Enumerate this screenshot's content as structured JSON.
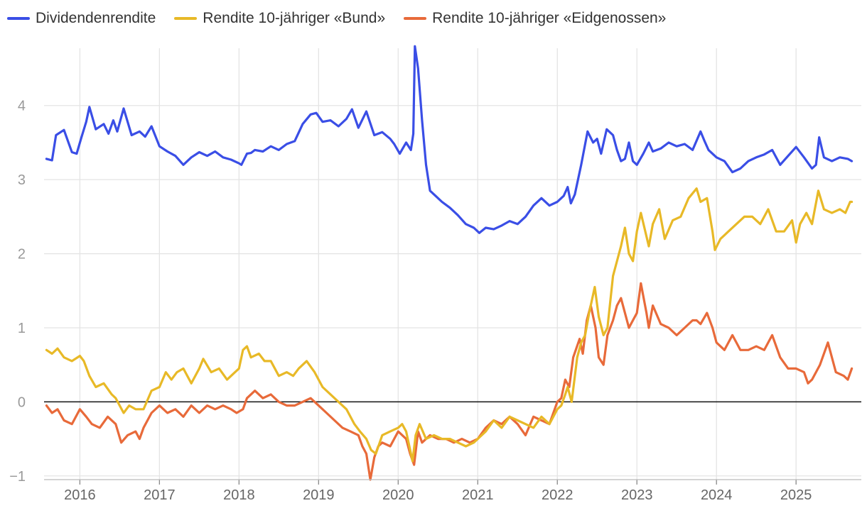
{
  "chart_data": {
    "type": "line",
    "title": "",
    "xlabel": "",
    "ylabel": "",
    "xlim": [
      2015.55,
      2025.82
    ],
    "ylim": [
      -1.05,
      4.85
    ],
    "x_ticks": [
      2016,
      2017,
      2018,
      2019,
      2020,
      2021,
      2022,
      2023,
      2024,
      2025
    ],
    "x_tick_labels": [
      "2016",
      "2017",
      "2018",
      "2019",
      "2020",
      "2021",
      "2022",
      "2023",
      "2024",
      "2025"
    ],
    "y_ticks": [
      -1,
      0,
      1,
      2,
      3,
      4
    ],
    "y_tick_labels": [
      "−1",
      "0",
      "1",
      "2",
      "3",
      "4"
    ],
    "zero_line": true,
    "grid": true,
    "legend_position": "top-left",
    "series": [
      {
        "name": "Dividendenrendite",
        "color": "#3a4ee6",
        "x": [
          2015.58,
          2015.65,
          2015.7,
          2015.8,
          2015.9,
          2015.96,
          2016.02,
          2016.08,
          2016.12,
          2016.2,
          2016.3,
          2016.36,
          2016.42,
          2016.47,
          2016.55,
          2016.65,
          2016.75,
          2016.82,
          2016.9,
          2017.0,
          2017.1,
          2017.2,
          2017.3,
          2017.4,
          2017.5,
          2017.6,
          2017.7,
          2017.8,
          2017.9,
          2018.0,
          2018.03,
          2018.1,
          2018.15,
          2018.2,
          2018.3,
          2018.4,
          2018.5,
          2018.6,
          2018.7,
          2018.8,
          2018.9,
          2018.97,
          2019.05,
          2019.15,
          2019.25,
          2019.35,
          2019.42,
          2019.5,
          2019.6,
          2019.7,
          2019.8,
          2019.9,
          2019.95,
          2020.02,
          2020.1,
          2020.16,
          2020.19,
          2020.21,
          2020.25,
          2020.3,
          2020.35,
          2020.4,
          2020.47,
          2020.55,
          2020.65,
          2020.75,
          2020.85,
          2020.95,
          2021.02,
          2021.1,
          2021.2,
          2021.3,
          2021.4,
          2021.5,
          2021.6,
          2021.7,
          2021.8,
          2021.9,
          2022.0,
          2022.08,
          2022.13,
          2022.17,
          2022.22,
          2022.3,
          2022.38,
          2022.45,
          2022.5,
          2022.55,
          2022.62,
          2022.7,
          2022.75,
          2022.8,
          2022.85,
          2022.9,
          2022.95,
          2023.0,
          2023.08,
          2023.15,
          2023.2,
          2023.3,
          2023.4,
          2023.5,
          2023.6,
          2023.7,
          2023.8,
          2023.85,
          2023.9,
          2024.0,
          2024.1,
          2024.2,
          2024.3,
          2024.4,
          2024.5,
          2024.6,
          2024.7,
          2024.8,
          2024.9,
          2025.0,
          2025.1,
          2025.2,
          2025.25,
          2025.29,
          2025.35,
          2025.45,
          2025.55,
          2025.65,
          2025.7
        ],
        "values": [
          3.28,
          3.26,
          3.6,
          3.67,
          3.37,
          3.35,
          3.57,
          3.78,
          3.98,
          3.68,
          3.75,
          3.62,
          3.8,
          3.65,
          3.96,
          3.6,
          3.65,
          3.58,
          3.72,
          3.45,
          3.38,
          3.32,
          3.2,
          3.3,
          3.37,
          3.32,
          3.38,
          3.3,
          3.27,
          3.22,
          3.2,
          3.35,
          3.36,
          3.4,
          3.38,
          3.45,
          3.4,
          3.48,
          3.52,
          3.75,
          3.88,
          3.9,
          3.78,
          3.8,
          3.72,
          3.82,
          3.95,
          3.7,
          3.92,
          3.6,
          3.64,
          3.55,
          3.48,
          3.35,
          3.5,
          3.4,
          3.62,
          4.8,
          4.5,
          3.8,
          3.2,
          2.85,
          2.78,
          2.7,
          2.62,
          2.52,
          2.4,
          2.35,
          2.28,
          2.35,
          2.33,
          2.38,
          2.44,
          2.4,
          2.5,
          2.65,
          2.75,
          2.65,
          2.7,
          2.78,
          2.9,
          2.68,
          2.8,
          3.2,
          3.65,
          3.5,
          3.55,
          3.35,
          3.68,
          3.6,
          3.4,
          3.25,
          3.28,
          3.5,
          3.25,
          3.2,
          3.35,
          3.5,
          3.38,
          3.42,
          3.5,
          3.45,
          3.48,
          3.4,
          3.65,
          3.52,
          3.4,
          3.3,
          3.25,
          3.1,
          3.15,
          3.25,
          3.3,
          3.34,
          3.4,
          3.2,
          3.32,
          3.44,
          3.3,
          3.15,
          3.2,
          3.57,
          3.3,
          3.25,
          3.3,
          3.28,
          3.25
        ]
      },
      {
        "name": "Rendite 10-jähriger «Bund»",
        "color": "#e8b927",
        "x": [
          2015.58,
          2015.65,
          2015.72,
          2015.8,
          2015.9,
          2016.0,
          2016.05,
          2016.12,
          2016.2,
          2016.3,
          2016.4,
          2016.45,
          2016.55,
          2016.62,
          2016.7,
          2016.8,
          2016.9,
          2017.0,
          2017.08,
          2017.15,
          2017.22,
          2017.3,
          2017.4,
          2017.5,
          2017.55,
          2017.65,
          2017.75,
          2017.85,
          2017.95,
          2018.0,
          2018.05,
          2018.1,
          2018.15,
          2018.25,
          2018.32,
          2018.4,
          2018.5,
          2018.6,
          2018.68,
          2018.75,
          2018.85,
          2018.95,
          2019.05,
          2019.15,
          2019.25,
          2019.35,
          2019.45,
          2019.52,
          2019.6,
          2019.66,
          2019.72,
          2019.8,
          2019.9,
          2020.0,
          2020.05,
          2020.1,
          2020.14,
          2020.18,
          2020.22,
          2020.27,
          2020.35,
          2020.45,
          2020.55,
          2020.65,
          2020.75,
          2020.85,
          2020.95,
          2021.0,
          2021.1,
          2021.2,
          2021.3,
          2021.4,
          2021.5,
          2021.6,
          2021.7,
          2021.8,
          2021.9,
          2022.0,
          2022.05,
          2022.1,
          2022.13,
          2022.18,
          2022.25,
          2022.3,
          2022.35,
          2022.4,
          2022.47,
          2022.52,
          2022.58,
          2022.63,
          2022.7,
          2022.75,
          2022.8,
          2022.85,
          2022.9,
          2022.95,
          2023.0,
          2023.05,
          2023.15,
          2023.2,
          2023.28,
          2023.35,
          2023.45,
          2023.55,
          2023.65,
          2023.75,
          2023.8,
          2023.88,
          2023.95,
          2023.98,
          2024.05,
          2024.15,
          2024.25,
          2024.35,
          2024.45,
          2024.55,
          2024.65,
          2024.75,
          2024.85,
          2024.95,
          2025.0,
          2025.05,
          2025.13,
          2025.2,
          2025.28,
          2025.35,
          2025.45,
          2025.55,
          2025.62,
          2025.68,
          2025.7
        ],
        "values": [
          0.7,
          0.65,
          0.72,
          0.6,
          0.55,
          0.62,
          0.55,
          0.35,
          0.2,
          0.25,
          0.1,
          0.05,
          -0.15,
          -0.05,
          -0.1,
          -0.1,
          0.15,
          0.2,
          0.4,
          0.3,
          0.4,
          0.45,
          0.25,
          0.45,
          0.58,
          0.4,
          0.45,
          0.3,
          0.4,
          0.45,
          0.7,
          0.75,
          0.6,
          0.65,
          0.55,
          0.55,
          0.35,
          0.4,
          0.35,
          0.45,
          0.55,
          0.4,
          0.2,
          0.1,
          0.0,
          -0.1,
          -0.3,
          -0.4,
          -0.5,
          -0.65,
          -0.7,
          -0.45,
          -0.4,
          -0.35,
          -0.3,
          -0.4,
          -0.6,
          -0.8,
          -0.45,
          -0.3,
          -0.5,
          -0.45,
          -0.5,
          -0.5,
          -0.55,
          -0.6,
          -0.55,
          -0.5,
          -0.4,
          -0.25,
          -0.35,
          -0.2,
          -0.25,
          -0.3,
          -0.35,
          -0.2,
          -0.3,
          -0.1,
          -0.05,
          0.1,
          0.2,
          0.0,
          0.6,
          0.8,
          0.9,
          1.2,
          1.55,
          1.15,
          0.9,
          1.0,
          1.7,
          1.9,
          2.1,
          2.35,
          2.0,
          1.9,
          2.3,
          2.55,
          2.1,
          2.4,
          2.6,
          2.2,
          2.45,
          2.5,
          2.75,
          2.88,
          2.7,
          2.75,
          2.3,
          2.05,
          2.2,
          2.3,
          2.4,
          2.5,
          2.5,
          2.4,
          2.6,
          2.3,
          2.3,
          2.45,
          2.15,
          2.4,
          2.55,
          2.4,
          2.85,
          2.6,
          2.55,
          2.6,
          2.55,
          2.7,
          2.7
        ]
      },
      {
        "name": "Rendite 10-jähriger «Eidgenossen»",
        "color": "#e86a3a",
        "x": [
          2015.58,
          2015.65,
          2015.72,
          2015.8,
          2015.9,
          2016.0,
          2016.08,
          2016.15,
          2016.25,
          2016.35,
          2016.45,
          2016.52,
          2016.6,
          2016.7,
          2016.75,
          2016.8,
          2016.9,
          2017.0,
          2017.1,
          2017.2,
          2017.3,
          2017.4,
          2017.5,
          2017.6,
          2017.7,
          2017.8,
          2017.9,
          2017.97,
          2018.05,
          2018.1,
          2018.2,
          2018.3,
          2018.4,
          2018.5,
          2018.6,
          2018.7,
          2018.8,
          2018.9,
          2019.0,
          2019.1,
          2019.2,
          2019.3,
          2019.4,
          2019.5,
          2019.55,
          2019.6,
          2019.65,
          2019.7,
          2019.75,
          2019.8,
          2019.9,
          2020.0,
          2020.1,
          2020.15,
          2020.2,
          2020.25,
          2020.3,
          2020.4,
          2020.5,
          2020.6,
          2020.7,
          2020.8,
          2020.9,
          2021.0,
          2021.1,
          2021.2,
          2021.3,
          2021.4,
          2021.5,
          2021.6,
          2021.7,
          2021.8,
          2021.9,
          2022.0,
          2022.05,
          2022.1,
          2022.15,
          2022.2,
          2022.28,
          2022.32,
          2022.37,
          2022.42,
          2022.48,
          2022.52,
          2022.58,
          2022.63,
          2022.7,
          2022.75,
          2022.8,
          2022.85,
          2022.9,
          2022.95,
          2023.0,
          2023.05,
          2023.12,
          2023.15,
          2023.2,
          2023.3,
          2023.4,
          2023.5,
          2023.6,
          2023.7,
          2023.75,
          2023.8,
          2023.88,
          2023.95,
          2024.0,
          2024.1,
          2024.2,
          2024.25,
          2024.3,
          2024.4,
          2024.5,
          2024.6,
          2024.65,
          2024.7,
          2024.8,
          2024.9,
          2025.0,
          2025.1,
          2025.15,
          2025.2,
          2025.3,
          2025.4,
          2025.5,
          2025.6,
          2025.65,
          2025.7
        ],
        "values": [
          -0.05,
          -0.15,
          -0.1,
          -0.25,
          -0.3,
          -0.1,
          -0.2,
          -0.3,
          -0.35,
          -0.2,
          -0.3,
          -0.55,
          -0.45,
          -0.4,
          -0.5,
          -0.35,
          -0.15,
          -0.05,
          -0.15,
          -0.1,
          -0.2,
          -0.05,
          -0.15,
          -0.05,
          -0.1,
          -0.05,
          -0.1,
          -0.15,
          -0.1,
          0.05,
          0.15,
          0.05,
          0.1,
          0.0,
          -0.05,
          -0.05,
          0.0,
          0.05,
          -0.05,
          -0.15,
          -0.25,
          -0.35,
          -0.4,
          -0.45,
          -0.6,
          -0.7,
          -1.05,
          -0.75,
          -0.6,
          -0.55,
          -0.6,
          -0.4,
          -0.5,
          -0.7,
          -0.85,
          -0.4,
          -0.55,
          -0.45,
          -0.5,
          -0.5,
          -0.55,
          -0.5,
          -0.55,
          -0.5,
          -0.35,
          -0.25,
          -0.3,
          -0.2,
          -0.3,
          -0.45,
          -0.2,
          -0.25,
          -0.3,
          0.0,
          0.05,
          0.3,
          0.2,
          0.6,
          0.85,
          0.65,
          1.1,
          1.3,
          1.0,
          0.6,
          0.5,
          0.9,
          1.1,
          1.3,
          1.4,
          1.2,
          1.0,
          1.1,
          1.2,
          1.6,
          1.2,
          1.0,
          1.3,
          1.05,
          1.0,
          0.9,
          1.0,
          1.1,
          1.1,
          1.05,
          1.2,
          1.0,
          0.8,
          0.7,
          0.9,
          0.8,
          0.7,
          0.7,
          0.75,
          0.7,
          0.8,
          0.9,
          0.6,
          0.45,
          0.45,
          0.4,
          0.25,
          0.3,
          0.5,
          0.8,
          0.4,
          0.35,
          0.3,
          0.45
        ]
      }
    ]
  }
}
